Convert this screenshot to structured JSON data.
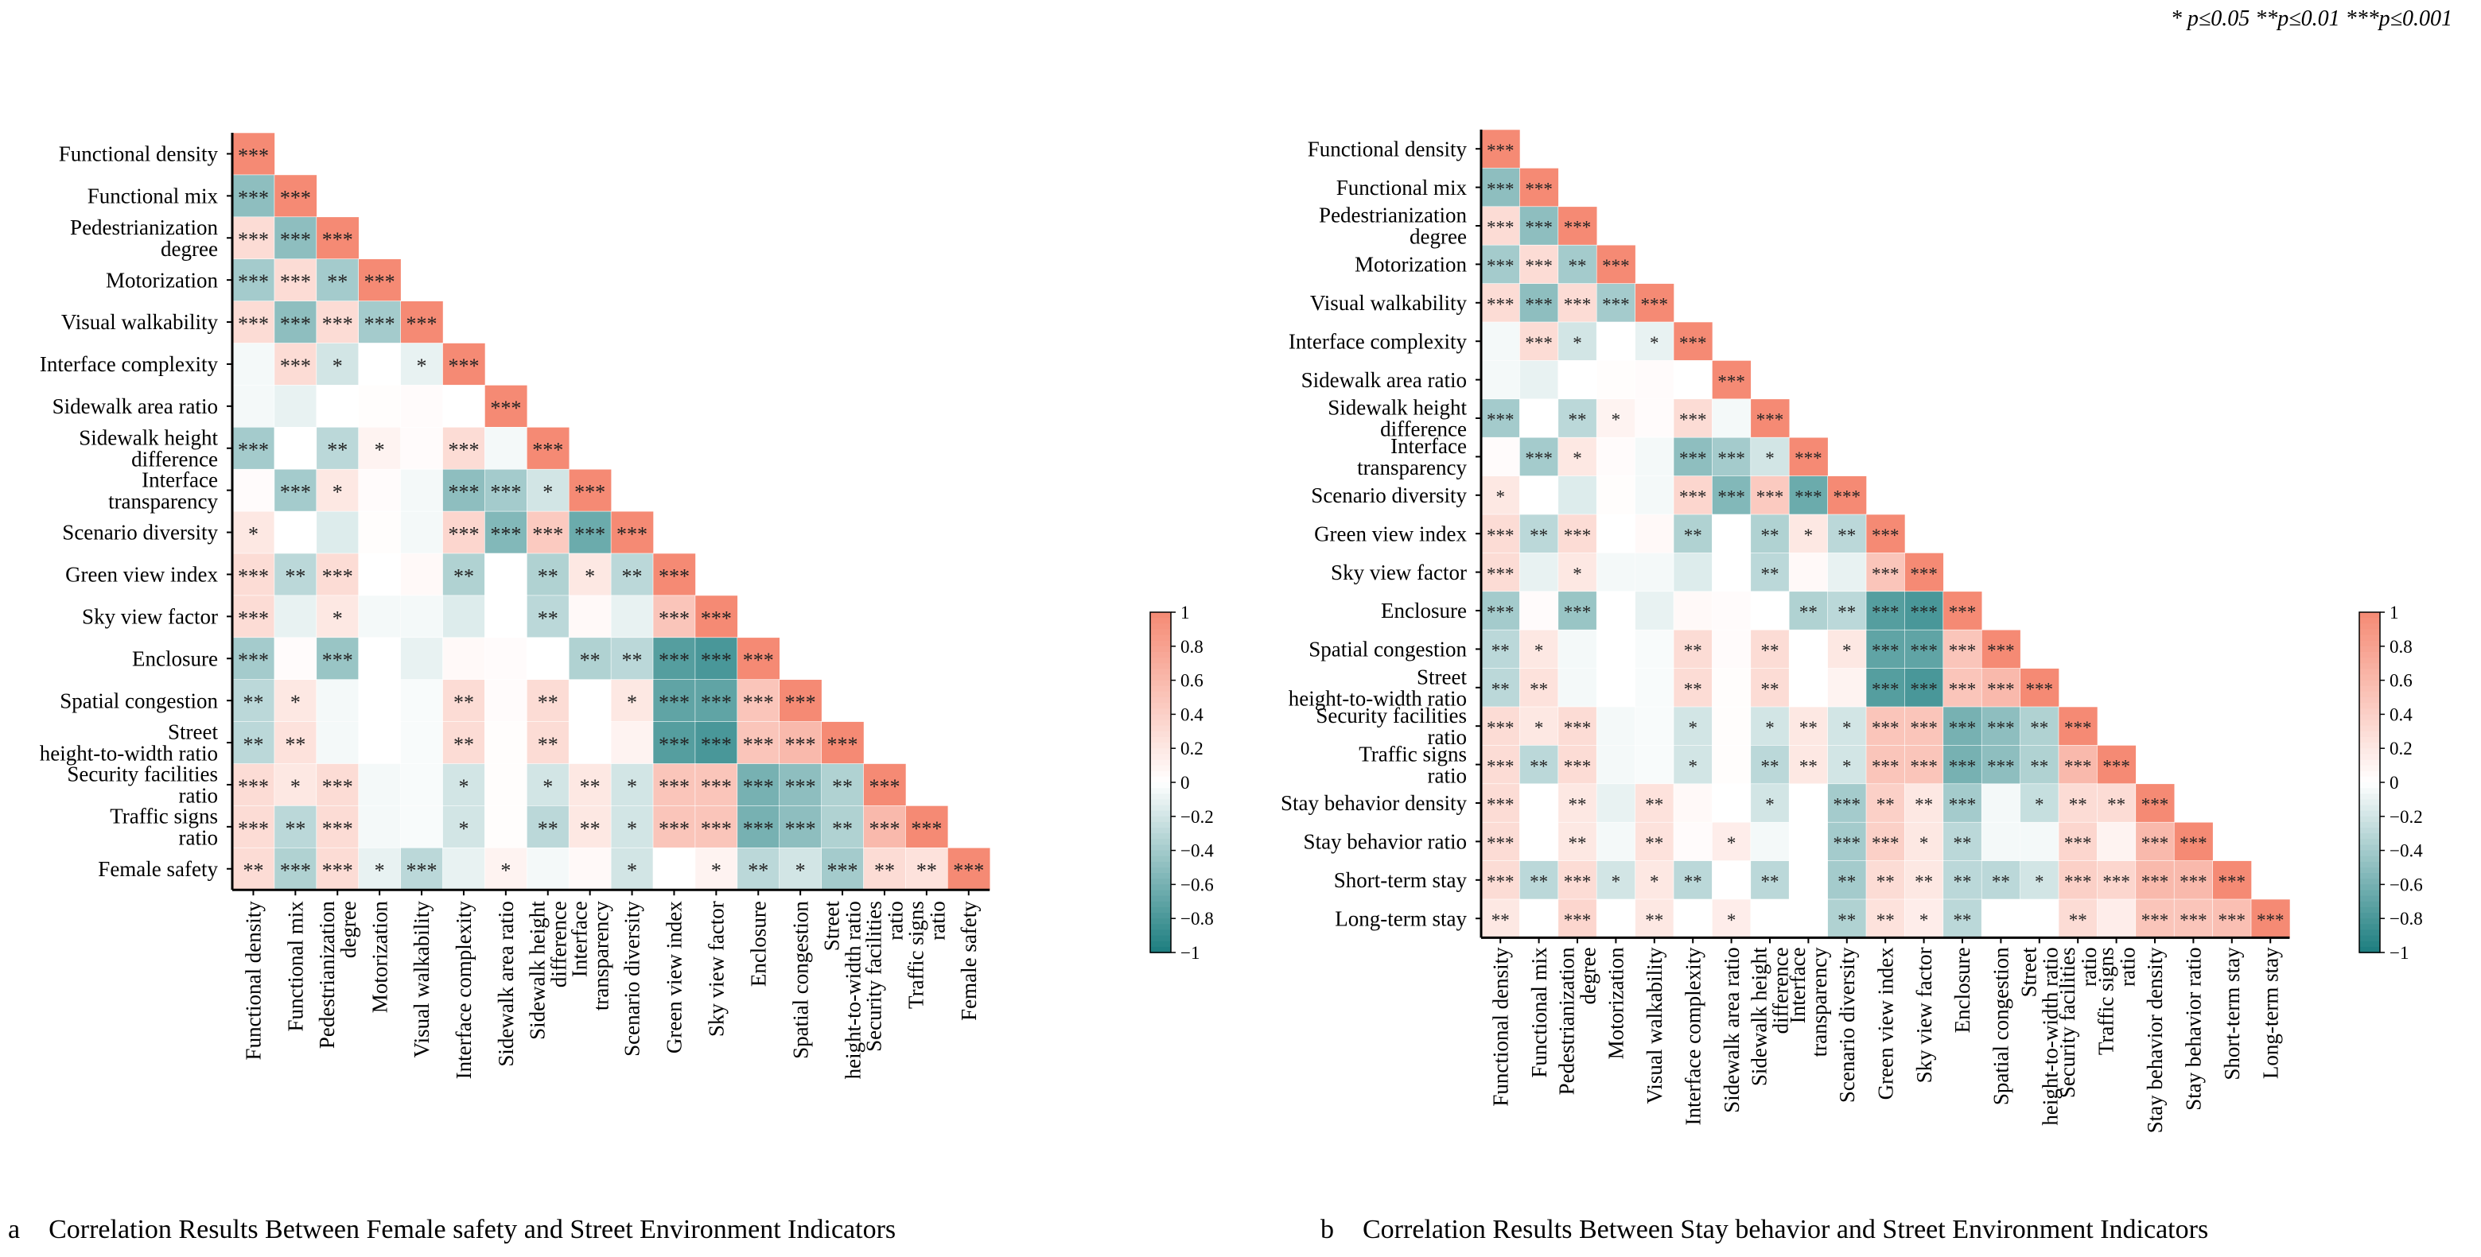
{
  "legend_text": "* p≤0.05   **p≤0.01   ***p≤0.001",
  "colors": {
    "positive": "#f58a74",
    "neutral": "#ffffff",
    "negative": "#1c7d7f"
  },
  "chart_data": [
    {
      "type": "heatmap",
      "id": "a",
      "panel_letter": "a",
      "title": "Correlation Results Between Female safety and Street Environment Indicators",
      "labels": [
        "Functional density",
        "Functional mix",
        "Pedestrianization\ndegree",
        "Motorization",
        "Visual walkability",
        "Interface complexity",
        "Sidewalk area ratio",
        "Sidewalk height\ndifference",
        "Interface\ntransparency",
        "Scenario diversity",
        "Green view index",
        "Sky view factor",
        "Enclosure",
        "Spatial congestion",
        "Street\nheight-to-width ratio",
        "Security facilities\nratio",
        "Traffic signs\nratio",
        "Female safety"
      ],
      "values": [
        [
          1
        ],
        [
          -0.5,
          1
        ],
        [
          0.3,
          -0.5,
          1
        ],
        [
          -0.4,
          0.3,
          -0.4,
          1
        ],
        [
          0.3,
          -0.5,
          0.3,
          -0.4,
          1
        ],
        [
          -0.05,
          0.3,
          -0.2,
          0,
          -0.1,
          1
        ],
        [
          -0.05,
          -0.1,
          0,
          0.02,
          0.03,
          0,
          1
        ],
        [
          -0.4,
          0,
          -0.3,
          0.1,
          0.03,
          0.3,
          -0.05,
          1
        ],
        [
          0.03,
          -0.4,
          0.2,
          0.03,
          -0.05,
          -0.5,
          -0.4,
          -0.2,
          1
        ],
        [
          0.2,
          0,
          -0.15,
          0.02,
          -0.05,
          0.35,
          -0.55,
          0.45,
          -0.65,
          1
        ],
        [
          0.3,
          -0.3,
          0.3,
          0,
          0.05,
          -0.35,
          0,
          -0.35,
          0.2,
          -0.3,
          1
        ],
        [
          0.3,
          -0.1,
          0.2,
          -0.05,
          -0.05,
          -0.15,
          0,
          -0.3,
          0.05,
          -0.1,
          0.5,
          1
        ],
        [
          -0.4,
          0.03,
          -0.45,
          0,
          -0.1,
          0.05,
          0.03,
          0,
          -0.35,
          -0.3,
          -0.75,
          -0.8,
          1
        ],
        [
          -0.3,
          0.2,
          -0.05,
          0,
          -0.03,
          0.3,
          0.03,
          0.3,
          0,
          0.2,
          -0.7,
          -0.7,
          0.5,
          1
        ],
        [
          -0.3,
          0.25,
          -0.05,
          0,
          -0.03,
          0.3,
          0.02,
          0.3,
          0,
          0.1,
          -0.75,
          -0.8,
          0.5,
          0.6,
          1
        ],
        [
          0.3,
          0.2,
          0.3,
          -0.05,
          -0.03,
          -0.2,
          0.02,
          -0.2,
          0.2,
          -0.2,
          0.5,
          0.5,
          -0.6,
          -0.5,
          -0.35,
          1
        ],
        [
          0.3,
          -0.3,
          0.3,
          -0.05,
          -0.03,
          -0.2,
          0.02,
          -0.3,
          0.2,
          -0.2,
          0.5,
          0.5,
          -0.6,
          -0.5,
          -0.35,
          0.6,
          1
        ],
        [
          0.3,
          -0.35,
          0.3,
          -0.1,
          -0.3,
          -0.1,
          0.1,
          -0.05,
          0.05,
          -0.2,
          0,
          0.1,
          -0.3,
          -0.2,
          -0.4,
          0.3,
          0.25,
          1
        ]
      ],
      "stars": [
        [
          "***"
        ],
        [
          "***",
          "***"
        ],
        [
          "***",
          "***",
          "***"
        ],
        [
          "***",
          "***",
          "**",
          "***"
        ],
        [
          "***",
          "***",
          "***",
          "***",
          "***"
        ],
        [
          "",
          "***",
          "*",
          "",
          "*",
          "***"
        ],
        [
          "",
          "",
          "",
          "",
          "",
          "",
          "***"
        ],
        [
          "***",
          "",
          "**",
          "*",
          "",
          "***",
          "",
          "***"
        ],
        [
          "",
          "***",
          "*",
          "",
          "",
          "***",
          "***",
          "*",
          "***"
        ],
        [
          "*",
          "",
          "",
          "",
          "",
          "***",
          "***",
          "***",
          "***",
          "***"
        ],
        [
          "***",
          "**",
          "***",
          "",
          "",
          "**",
          "",
          "**",
          "*",
          "**",
          "***"
        ],
        [
          "***",
          "",
          "*",
          "",
          "",
          "",
          "",
          "**",
          "",
          "",
          "***",
          "***"
        ],
        [
          "***",
          "",
          "***",
          "",
          "",
          "",
          "",
          "",
          "**",
          "**",
          "***",
          "***",
          "***"
        ],
        [
          "**",
          "*",
          "",
          "",
          "",
          "**",
          "",
          "**",
          "",
          "*",
          "***",
          "***",
          "***",
          "***"
        ],
        [
          "**",
          "**",
          "",
          "",
          "",
          "**",
          "",
          "**",
          "",
          "",
          "***",
          "***",
          "***",
          "***",
          "***"
        ],
        [
          "***",
          "*",
          "***",
          "",
          "",
          "*",
          "",
          "*",
          "**",
          "*",
          "***",
          "***",
          "***",
          "***",
          "**",
          "***"
        ],
        [
          "***",
          "**",
          "***",
          "",
          "",
          "*",
          "",
          "**",
          "**",
          "*",
          "***",
          "***",
          "***",
          "***",
          "**",
          "***",
          "***"
        ],
        [
          "**",
          "***",
          "***",
          "*",
          "***",
          "",
          "*",
          "",
          "",
          "*",
          "",
          "*",
          "**",
          "*",
          "***",
          "**",
          "**",
          "***"
        ]
      ],
      "colorbar": {
        "min": -1,
        "max": 1,
        "ticks": [
          1,
          0.8,
          0.6,
          0.4,
          0.2,
          0,
          -0.2,
          -0.4,
          -0.6,
          -0.8,
          -1
        ],
        "tick_labels": [
          "1",
          "0.8",
          "0.6",
          "0.4",
          "0.2",
          "0",
          "−0.2",
          "−0.4",
          "−0.6",
          "−0.8",
          "−1"
        ]
      }
    },
    {
      "type": "heatmap",
      "id": "b",
      "panel_letter": "b",
      "title": "Correlation Results Between Stay behavior and Street Environment Indicators",
      "labels": [
        "Functional density",
        "Functional mix",
        "Pedestrianization\ndegree",
        "Motorization",
        "Visual walkability",
        "Interface complexity",
        "Sidewalk area ratio",
        "Sidewalk height\ndifference",
        "Interface\ntransparency",
        "Scenario diversity",
        "Green view index",
        "Sky view factor",
        "Enclosure",
        "Spatial congestion",
        "Street\nheight-to-width ratio",
        "Security facilities\nratio",
        "Traffic signs\nratio",
        "Stay behavior density",
        "Stay behavior ratio",
        "Short-term stay",
        "Long-term stay"
      ],
      "values": [
        [
          1
        ],
        [
          -0.5,
          1
        ],
        [
          0.3,
          -0.5,
          1
        ],
        [
          -0.4,
          0.3,
          -0.4,
          1
        ],
        [
          0.3,
          -0.5,
          0.3,
          -0.4,
          1
        ],
        [
          -0.05,
          0.3,
          -0.2,
          0,
          -0.1,
          1
        ],
        [
          -0.05,
          -0.1,
          0,
          0.02,
          0.03,
          0,
          1
        ],
        [
          -0.4,
          0,
          -0.3,
          0.1,
          0.03,
          0.3,
          -0.05,
          1
        ],
        [
          0.03,
          -0.4,
          0.2,
          0.03,
          -0.05,
          -0.5,
          -0.4,
          -0.2,
          1
        ],
        [
          0.2,
          0,
          -0.15,
          0.02,
          -0.05,
          0.35,
          -0.55,
          0.45,
          -0.65,
          1
        ],
        [
          0.3,
          -0.3,
          0.3,
          0,
          0.05,
          -0.35,
          0,
          -0.35,
          0.2,
          -0.3,
          1
        ],
        [
          0.3,
          -0.1,
          0.2,
          -0.05,
          -0.05,
          -0.15,
          0,
          -0.3,
          0.05,
          -0.1,
          0.5,
          1
        ],
        [
          -0.4,
          0.03,
          -0.45,
          0,
          -0.1,
          0.05,
          0.03,
          0,
          -0.35,
          -0.3,
          -0.75,
          -0.8,
          1
        ],
        [
          -0.3,
          0.2,
          -0.05,
          0,
          -0.03,
          0.3,
          0.03,
          0.3,
          0,
          0.2,
          -0.7,
          -0.7,
          0.5,
          1
        ],
        [
          -0.3,
          0.25,
          -0.05,
          0,
          -0.03,
          0.3,
          0.02,
          0.3,
          0,
          0.1,
          -0.75,
          -0.8,
          0.5,
          0.6,
          1
        ],
        [
          0.3,
          0.2,
          0.3,
          -0.05,
          -0.03,
          -0.2,
          0.02,
          -0.2,
          0.2,
          -0.2,
          0.5,
          0.5,
          -0.6,
          -0.5,
          -0.35,
          1
        ],
        [
          0.3,
          -0.3,
          0.3,
          -0.05,
          -0.03,
          -0.2,
          0.02,
          -0.3,
          0.2,
          -0.2,
          0.5,
          0.5,
          -0.6,
          -0.5,
          -0.35,
          0.6,
          1
        ],
        [
          0.3,
          0,
          0.2,
          -0.1,
          0.25,
          0.05,
          0,
          -0.2,
          0,
          -0.4,
          0.4,
          0.2,
          -0.4,
          -0.05,
          -0.25,
          0.3,
          0.3,
          1
        ],
        [
          0.3,
          0,
          0.2,
          -0.05,
          0.25,
          0.03,
          0.15,
          -0.05,
          0,
          -0.4,
          0.4,
          0.2,
          -0.3,
          -0.05,
          -0.05,
          0.35,
          0.1,
          0.6,
          1
        ],
        [
          0.3,
          -0.3,
          0.3,
          -0.2,
          0.2,
          -0.3,
          0,
          -0.3,
          0,
          -0.4,
          0.3,
          0.2,
          -0.3,
          -0.3,
          -0.2,
          0.4,
          0.35,
          0.6,
          0.6,
          1
        ],
        [
          0.2,
          0,
          0.35,
          0,
          0.2,
          0,
          0.15,
          0,
          0,
          -0.35,
          0.25,
          0.15,
          -0.3,
          0,
          0,
          0.3,
          0.15,
          0.5,
          0.5,
          0.55,
          1
        ]
      ],
      "stars": [
        [
          "***"
        ],
        [
          "***",
          "***"
        ],
        [
          "***",
          "***",
          "***"
        ],
        [
          "***",
          "***",
          "**",
          "***"
        ],
        [
          "***",
          "***",
          "***",
          "***",
          "***"
        ],
        [
          "",
          "***",
          "*",
          "",
          "*",
          "***"
        ],
        [
          "",
          "",
          "",
          "",
          "",
          "",
          "***"
        ],
        [
          "***",
          "",
          "**",
          "*",
          "",
          "***",
          "",
          "***"
        ],
        [
          "",
          "***",
          "*",
          "",
          "",
          "***",
          "***",
          "*",
          "***"
        ],
        [
          "*",
          "",
          "",
          "",
          "",
          "***",
          "***",
          "***",
          "***",
          "***"
        ],
        [
          "***",
          "**",
          "***",
          "",
          "",
          "**",
          "",
          "**",
          "*",
          "**",
          "***"
        ],
        [
          "***",
          "",
          "*",
          "",
          "",
          "",
          "",
          "**",
          "",
          "",
          "***",
          "***"
        ],
        [
          "***",
          "",
          "***",
          "",
          "",
          "",
          "",
          "",
          "**",
          "**",
          "***",
          "***",
          "***"
        ],
        [
          "**",
          "*",
          "",
          "",
          "",
          "**",
          "",
          "**",
          "",
          "*",
          "***",
          "***",
          "***",
          "***"
        ],
        [
          "**",
          "**",
          "",
          "",
          "",
          "**",
          "",
          "**",
          "",
          "",
          "***",
          "***",
          "***",
          "***",
          "***"
        ],
        [
          "***",
          "*",
          "***",
          "",
          "",
          "*",
          "",
          "*",
          "**",
          "*",
          "***",
          "***",
          "***",
          "***",
          "**",
          "***"
        ],
        [
          "***",
          "**",
          "***",
          "",
          "",
          "*",
          "",
          "**",
          "**",
          "*",
          "***",
          "***",
          "***",
          "***",
          "**",
          "***",
          "***"
        ],
        [
          "***",
          "",
          "**",
          "",
          "**",
          "",
          "",
          "*",
          "",
          "***",
          "**",
          "**",
          "***",
          "",
          "*",
          "**",
          "**",
          "***"
        ],
        [
          "***",
          "",
          "**",
          "",
          "**",
          "",
          "*",
          "",
          "",
          "***",
          "***",
          "*",
          "**",
          "",
          "",
          "***",
          "",
          "***",
          "***"
        ],
        [
          "***",
          "**",
          "***",
          "*",
          "*",
          "**",
          "",
          "**",
          "",
          "**",
          "**",
          "**",
          "**",
          "**",
          "*",
          "***",
          "***",
          "***",
          "***",
          "***"
        ],
        [
          "**",
          "",
          "***",
          "",
          "**",
          "",
          "*",
          "",
          "",
          "**",
          "**",
          "*",
          "**",
          "",
          "",
          "**",
          "",
          "***",
          "***",
          "***",
          "***"
        ]
      ],
      "colorbar": {
        "min": -1,
        "max": 1,
        "ticks": [
          1,
          0.8,
          0.6,
          0.4,
          0.2,
          0,
          -0.2,
          -0.4,
          -0.6,
          -0.8,
          -1
        ],
        "tick_labels": [
          "1",
          "0.8",
          "0.6",
          "0.4",
          "0.2",
          "0",
          "−0.2",
          "−0.4",
          "−0.6",
          "−0.8",
          "−1"
        ]
      }
    }
  ]
}
